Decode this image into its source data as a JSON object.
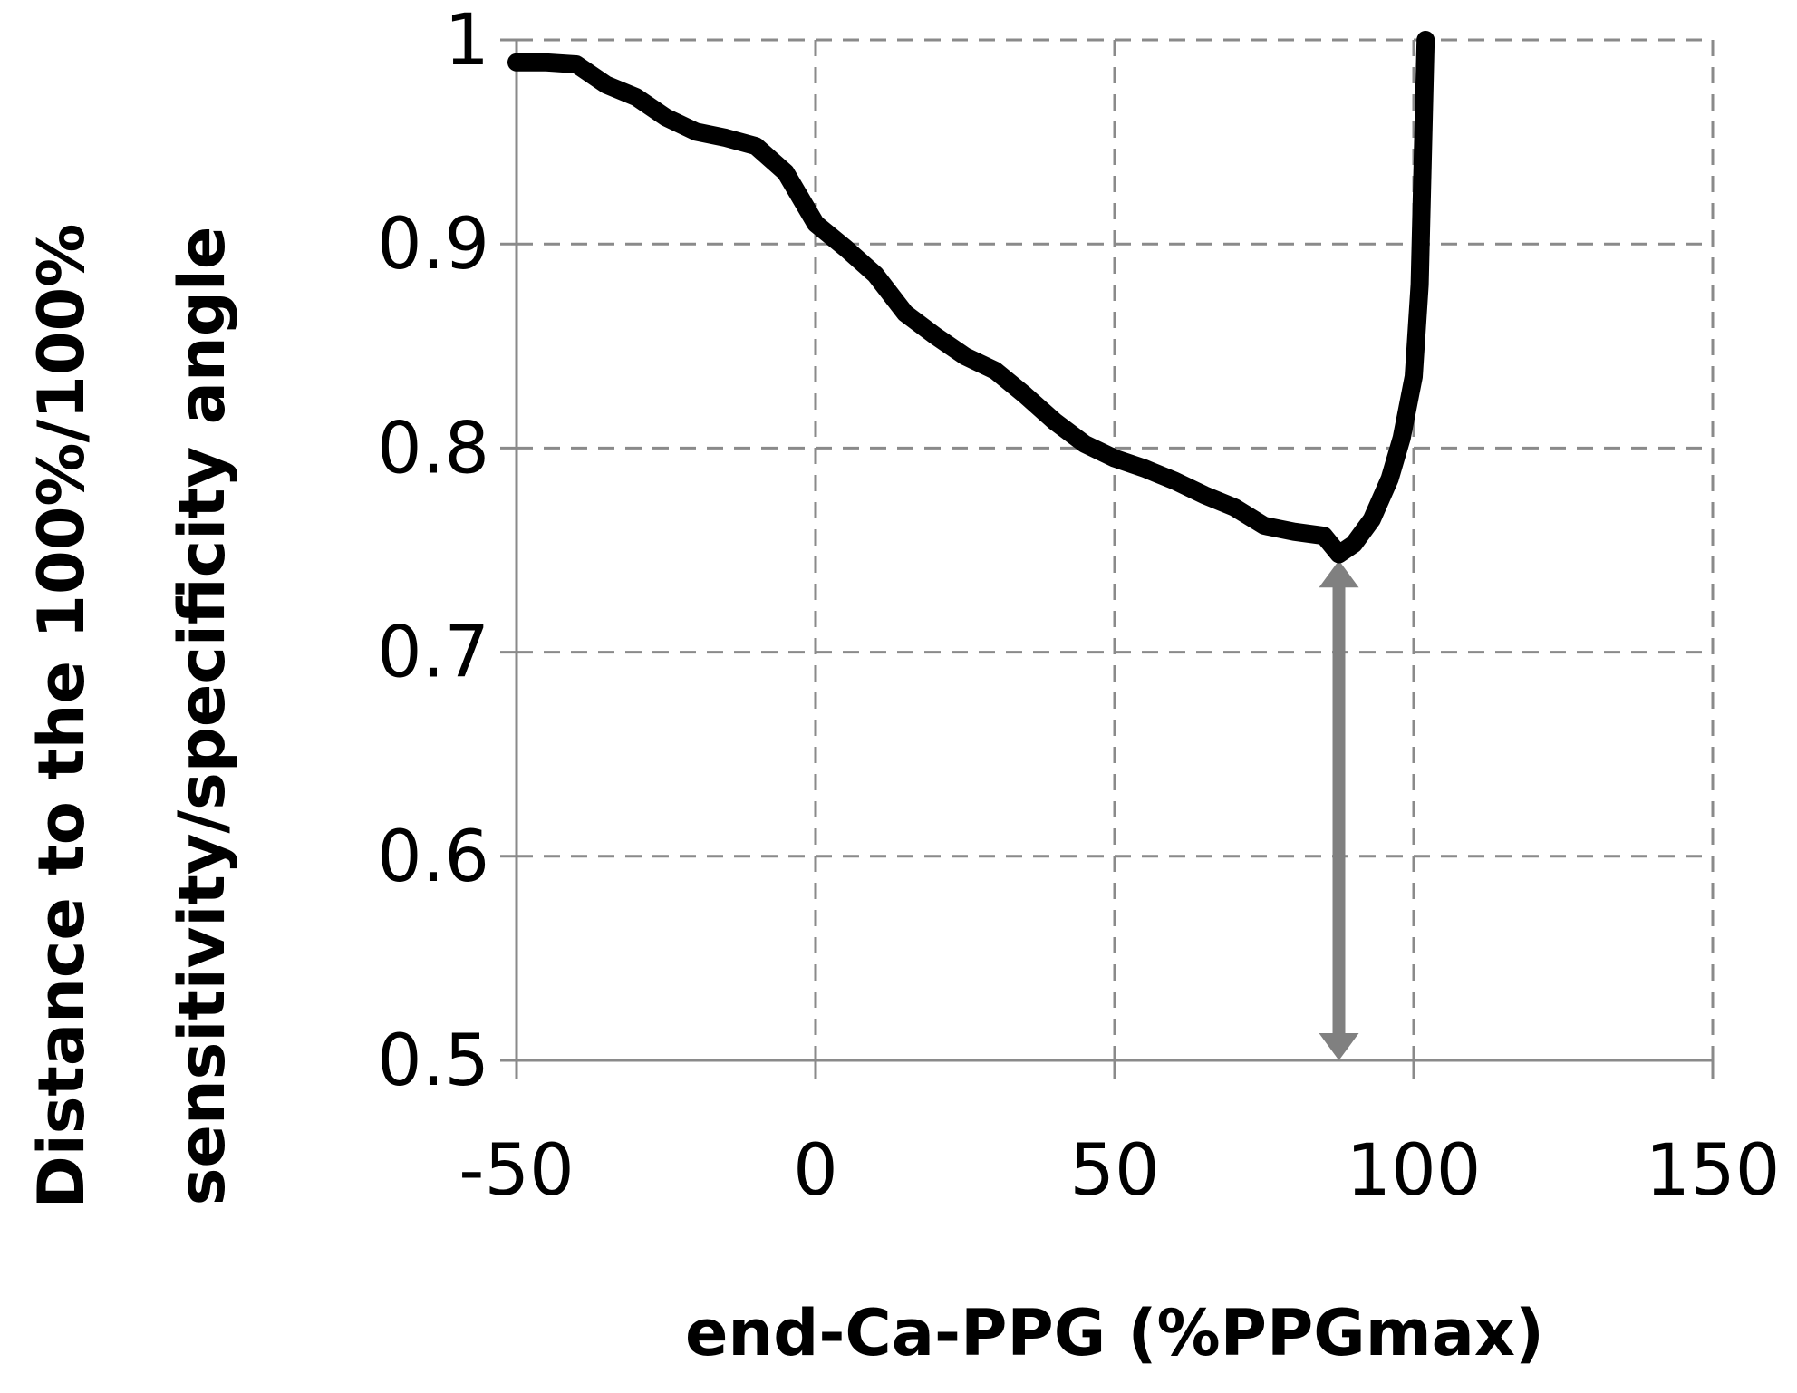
{
  "chart_data": {
    "type": "line",
    "title": "",
    "xlabel": "end-Ca-PPG (%PPGmax)",
    "ylabel_lines": [
      "Distance to the 100%/100%",
      "sensitivity/specificity angle"
    ],
    "xlim": [
      -50,
      150
    ],
    "ylim": [
      0.5,
      1
    ],
    "x_ticks": [
      -50,
      0,
      50,
      100,
      150
    ],
    "x_tick_labels": [
      "-50",
      "0",
      "50",
      "100",
      "150"
    ],
    "y_ticks": [
      0.5,
      0.6,
      0.7,
      0.8,
      0.9,
      1
    ],
    "y_tick_labels": [
      "0.5",
      "0.6",
      "0.7",
      "0.8",
      "0.9",
      "1"
    ],
    "grid": true,
    "legend": "none",
    "series": [
      {
        "color": "#000000",
        "x": [
          -50,
          -45,
          -40,
          -35,
          -30,
          -25,
          -20,
          -15,
          -10,
          -5,
          0,
          5,
          10,
          15,
          20,
          25,
          30,
          35,
          40,
          45,
          50,
          55,
          60,
          65,
          70,
          75,
          80,
          85,
          87.5,
          90,
          93,
          96,
          98,
          100,
          101,
          101.5,
          102
        ],
        "y": [
          0.989,
          0.989,
          0.988,
          0.978,
          0.972,
          0.962,
          0.955,
          0.952,
          0.948,
          0.935,
          0.91,
          0.898,
          0.885,
          0.866,
          0.855,
          0.845,
          0.838,
          0.826,
          0.813,
          0.802,
          0.795,
          0.79,
          0.784,
          0.777,
          0.771,
          0.762,
          0.759,
          0.757,
          0.748,
          0.753,
          0.765,
          0.785,
          0.805,
          0.835,
          0.88,
          0.94,
          1.0
        ]
      }
    ],
    "annotations": [
      {
        "type": "double-arrow",
        "color": "#808080",
        "x": 87.5,
        "y_from": 0.5,
        "y_to": 0.745
      }
    ]
  }
}
